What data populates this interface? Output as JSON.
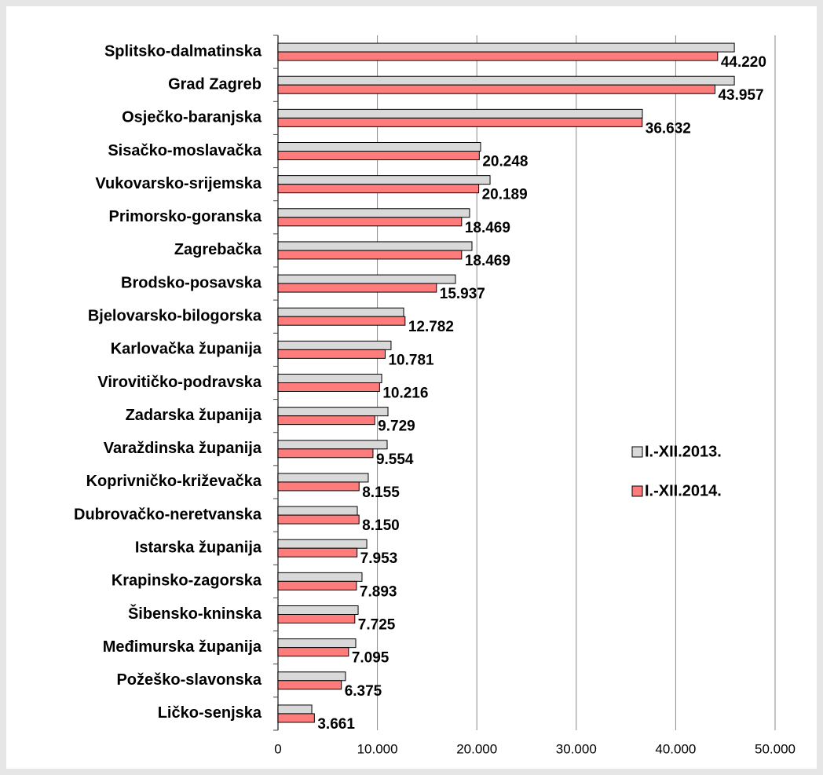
{
  "chart_data": {
    "type": "hbar",
    "categories": [
      "Splitsko-dalmatinska",
      "Grad Zagreb",
      "Osječko-baranjska",
      "Sisačko-moslavačka",
      "Vukovarsko-srijemska",
      "Primorsko-goranska",
      "Zagrebačka",
      "Brodsko-posavska",
      "Bjelovarsko-bilogorska",
      "Karlovačka županija",
      "Virovitičko-podravska",
      "Zadarska županija",
      "Varaždinska županija",
      "Koprivničko-križevačka",
      "Dubrovačko-neretvanska",
      "Istarska županija",
      "Krapinsko-zagorska",
      "Šibensko-kninska",
      "Međimurska županija",
      "Požeško-slavonska",
      "Ličko-senjska"
    ],
    "series": [
      {
        "name": "I.-XII.2013.",
        "color": "#d9d9d9",
        "values": [
          45900,
          45900,
          36650,
          20380,
          21330,
          19270,
          19510,
          17850,
          12640,
          11370,
          10430,
          11060,
          10980,
          9080,
          7980,
          8930,
          8450,
          8060,
          7820,
          6790,
          3400
        ]
      },
      {
        "name": "I.-XII.2014.",
        "color": "#ff7c7c",
        "values": [
          44220,
          43957,
          36632,
          20248,
          20189,
          18469,
          18469,
          15937,
          12782,
          10781,
          10216,
          9729,
          9554,
          8155,
          8150,
          7953,
          7893,
          7725,
          7095,
          6375,
          3661
        ],
        "value_labels": [
          "44.220",
          "43.957",
          "36.632",
          "20.248",
          "20.189",
          "18.469",
          "18.469",
          "15.937",
          "12.782",
          "10.781",
          "10.216",
          "9.729",
          "9.554",
          "8.155",
          "8.150",
          "7.953",
          "7.893",
          "7.725",
          "7.095",
          "6.375",
          "3.661"
        ]
      }
    ],
    "xlim": [
      0,
      50000
    ],
    "xticks": [
      0,
      {
        "value": 10000,
        "label": "10.000"
      },
      {
        "value": 20000,
        "label": "20.000"
      },
      {
        "value": 30000,
        "label": "30.000"
      },
      {
        "value": 40000,
        "label": "40.000"
      },
      {
        "value": 50000,
        "label": "50.000"
      }
    ],
    "grid": true,
    "legend": "right"
  }
}
